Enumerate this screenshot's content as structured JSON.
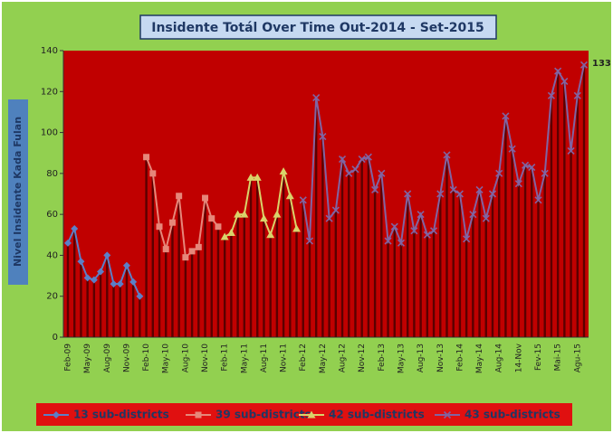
{
  "chart_data": {
    "type": "line",
    "title": "Insidente Totál Over Time Out-2014 - Set-2015",
    "y_label": "Nivel Insidente Kada Fulan",
    "categories": [
      "Feb-09",
      null,
      null,
      "May-09",
      null,
      null,
      "Aug-09",
      null,
      null,
      "Nov-09",
      null,
      null,
      "Feb-10",
      null,
      null,
      "May-10",
      null,
      null,
      "Aug-10",
      null,
      null,
      "Nov-10",
      null,
      null,
      "Feb-11",
      null,
      null,
      "May-11",
      null,
      null,
      "Aug-11",
      null,
      null,
      "Nov-11",
      null,
      null,
      "Feb-12",
      null,
      null,
      "May-12",
      null,
      null,
      "Aug-12",
      null,
      null,
      "Nov-12",
      null,
      null,
      "Feb-13",
      null,
      null,
      "May-13",
      null,
      null,
      "Aug-13",
      null,
      null,
      "Nov-13",
      null,
      null,
      "Feb-14",
      null,
      null,
      "May-14",
      null,
      null,
      "Aug-14",
      null,
      null,
      "14-Nov",
      null,
      null,
      "Fev-15",
      null,
      null,
      "Mai-15",
      null,
      null,
      "Agu-15",
      null
    ],
    "series": [
      {
        "name": "13 sub-districts",
        "color": "#5b7fc7",
        "marker": "diamond",
        "values": [
          46,
          53,
          37,
          29,
          28,
          32,
          40,
          26,
          26,
          35,
          27,
          20,
          null,
          null,
          null,
          null,
          null,
          null,
          null,
          null,
          null,
          null,
          null,
          null,
          null,
          null,
          null,
          null,
          null,
          null,
          null,
          null,
          null,
          null,
          null,
          null,
          null,
          null,
          null,
          null,
          null,
          null,
          null,
          null,
          null,
          null,
          null,
          null,
          null,
          null,
          null,
          null,
          null,
          null,
          null,
          null,
          null,
          null,
          null,
          null,
          null,
          null,
          null,
          null,
          null,
          null,
          null,
          null,
          null,
          null,
          null,
          null,
          null,
          null,
          null,
          null,
          null,
          null,
          null,
          null
        ]
      },
      {
        "name": "39 sub-districts",
        "color": "#e6877a",
        "marker": "square",
        "values": [
          null,
          null,
          null,
          null,
          null,
          null,
          null,
          null,
          null,
          null,
          null,
          null,
          88,
          80,
          54,
          43,
          56,
          69,
          39,
          42,
          44,
          68,
          58,
          54,
          null,
          null,
          null,
          null,
          null,
          null,
          null,
          null,
          null,
          null,
          null,
          null,
          null,
          null,
          null,
          null,
          null,
          null,
          null,
          null,
          null,
          null,
          null,
          null,
          null,
          null,
          null,
          null,
          null,
          null,
          null,
          null,
          null,
          null,
          null,
          null,
          null,
          null,
          null,
          null,
          null,
          null,
          null,
          null,
          null,
          null,
          null,
          null,
          null,
          null,
          null,
          null,
          null,
          null,
          null,
          null
        ]
      },
      {
        "name": "42 sub-districts",
        "color": "#d9d36a",
        "marker": "triangle",
        "values": [
          null,
          null,
          null,
          null,
          null,
          null,
          null,
          null,
          null,
          null,
          null,
          null,
          null,
          null,
          null,
          null,
          null,
          null,
          null,
          null,
          null,
          null,
          null,
          null,
          49,
          51,
          60,
          60,
          78,
          78,
          58,
          50,
          60,
          81,
          69,
          53,
          null,
          null,
          null,
          null,
          null,
          null,
          null,
          null,
          null,
          null,
          null,
          null,
          null,
          null,
          null,
          null,
          null,
          null,
          null,
          null,
          null,
          null,
          null,
          null,
          null,
          null,
          null,
          null,
          null,
          null,
          null,
          null,
          null,
          null,
          null,
          null,
          null,
          null,
          null,
          null,
          null,
          null,
          null,
          null
        ]
      },
      {
        "name": "43 sub-districts",
        "color": "#8064a2",
        "marker": "x",
        "values": [
          null,
          null,
          null,
          null,
          null,
          null,
          null,
          null,
          null,
          null,
          null,
          null,
          null,
          null,
          null,
          null,
          null,
          null,
          null,
          null,
          null,
          null,
          null,
          null,
          null,
          null,
          null,
          null,
          null,
          null,
          null,
          null,
          null,
          null,
          null,
          null,
          67,
          47,
          117,
          98,
          58,
          62,
          87,
          80,
          82,
          87,
          88,
          72,
          80,
          47,
          54,
          46,
          70,
          52,
          60,
          50,
          52,
          70,
          89,
          72,
          70,
          48,
          60,
          72,
          58,
          70,
          80,
          108,
          92,
          75,
          84,
          83,
          67,
          80,
          118,
          130,
          125,
          91,
          118,
          133
        ]
      }
    ],
    "bar_color": "#5a0000",
    "ylim": [
      0,
      140
    ],
    "yticks": [
      0,
      20,
      40,
      60,
      80,
      100,
      120,
      140
    ],
    "grid": false,
    "legend": "bottom"
  }
}
